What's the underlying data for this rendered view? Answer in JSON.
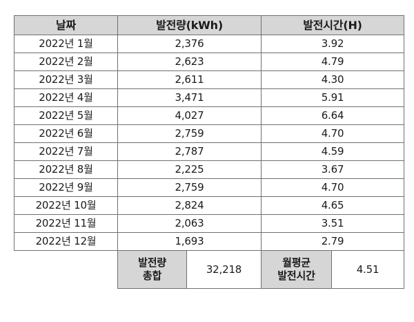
{
  "headers": {
    "date": "날짜",
    "generation": "발전량(kWh)",
    "hours": "발전시간(H)"
  },
  "rows": [
    {
      "date": "2022년 1월",
      "generation": "2,376",
      "hours": "3.92"
    },
    {
      "date": "2022년 2월",
      "generation": "2,623",
      "hours": "4.79"
    },
    {
      "date": "2022년 3월",
      "generation": "2,611",
      "hours": "4.30"
    },
    {
      "date": "2022년 4월",
      "generation": "3,471",
      "hours": "5.91"
    },
    {
      "date": "2022년 5월",
      "generation": "4,027",
      "hours": "6.64"
    },
    {
      "date": "2022년 6월",
      "generation": "2,759",
      "hours": "4.70"
    },
    {
      "date": "2022년 7월",
      "generation": "2,787",
      "hours": "4.59"
    },
    {
      "date": "2022년 8월",
      "generation": "2,225",
      "hours": "3.67"
    },
    {
      "date": "2022년 9월",
      "generation": "2,759",
      "hours": "4.70"
    },
    {
      "date": "2022년 10월",
      "generation": "2,824",
      "hours": "4.65"
    },
    {
      "date": "2022년 11월",
      "generation": "2,063",
      "hours": "3.51"
    },
    {
      "date": "2022년 12월",
      "generation": "1,693",
      "hours": "2.79"
    }
  ],
  "summary": {
    "total_label_line1": "발전량",
    "total_label_line2": "총합",
    "total_value": "32,218",
    "avg_label_line1": "월평균",
    "avg_label_line2": "발전시간",
    "avg_value": "4.51"
  }
}
